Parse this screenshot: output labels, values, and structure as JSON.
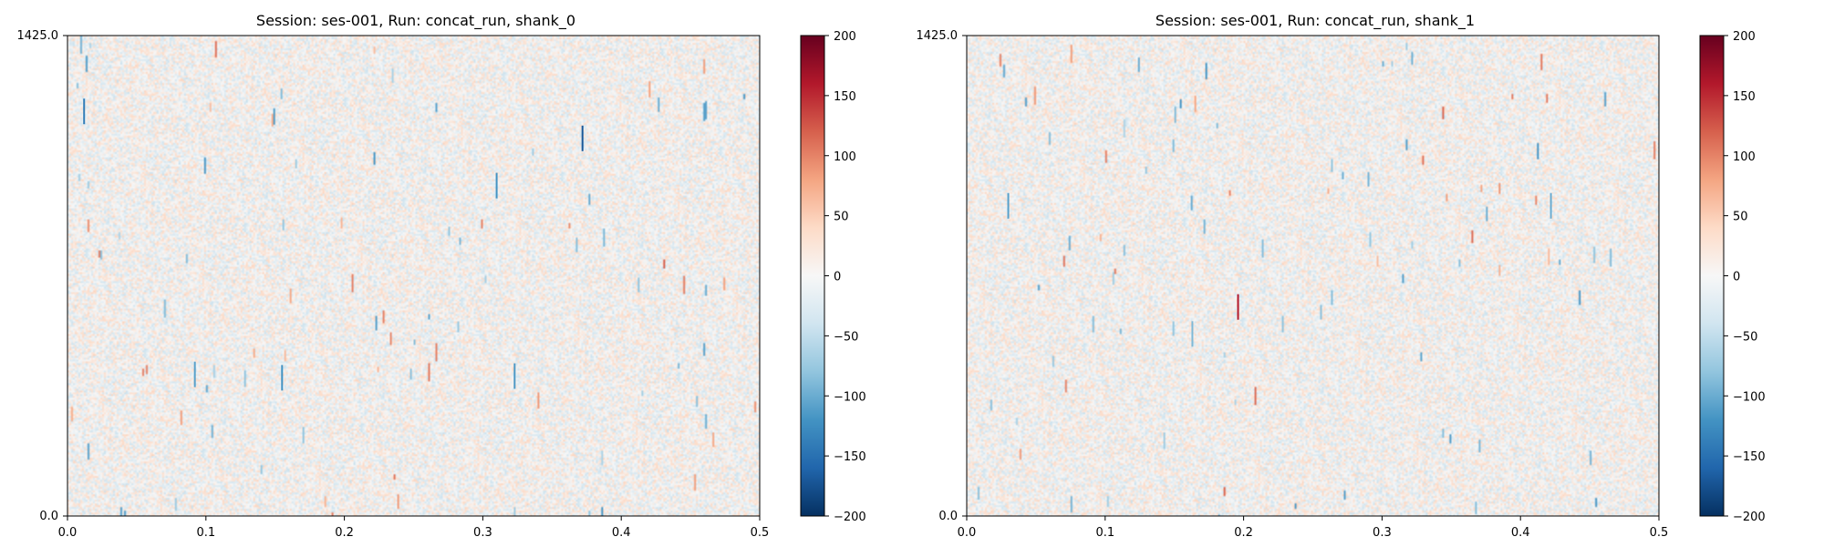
{
  "chart_data": [
    {
      "type": "heatmap",
      "title": "Session: ses-001, Run: concat_run, shank_0",
      "xlabel": "",
      "ylabel": "",
      "xlim": [
        0.0,
        0.5
      ],
      "ylim": [
        0.0,
        1425.0
      ],
      "x_ticks": [
        0.0,
        0.1,
        0.2,
        0.3,
        0.4,
        0.5
      ],
      "x_tick_labels": [
        "0.0",
        "0.1",
        "0.2",
        "0.3",
        "0.4",
        "0.5"
      ],
      "y_tick_labels": [
        "0.0",
        "1425.0"
      ],
      "colorbar": {
        "colormap": "RdBu_r",
        "range": [
          -200,
          200
        ],
        "ticks": [
          200,
          150,
          100,
          50,
          0,
          -50,
          -100,
          -150,
          -200
        ],
        "tick_labels": [
          "200",
          "150",
          "100",
          "50",
          "0",
          "−50",
          "−100",
          "−150",
          "−200"
        ]
      },
      "highlights": [
        {
          "t": 0.012,
          "depth": 1200,
          "value": -140
        },
        {
          "t": 0.372,
          "depth": 1120,
          "value": -170
        },
        {
          "t": 0.31,
          "depth": 980,
          "value": -120
        },
        {
          "t": 0.092,
          "depth": 420,
          "value": -110
        },
        {
          "t": 0.155,
          "depth": 410,
          "value": -120
        },
        {
          "t": 0.323,
          "depth": 415,
          "value": -115
        }
      ]
    },
    {
      "type": "heatmap",
      "title": "Session: ses-001, Run: concat_run, shank_1",
      "xlabel": "",
      "ylabel": "",
      "xlim": [
        0.0,
        0.5
      ],
      "ylim": [
        0.0,
        1425.0
      ],
      "x_ticks": [
        0.0,
        0.1,
        0.2,
        0.3,
        0.4,
        0.5
      ],
      "x_tick_labels": [
        "0.0",
        "0.1",
        "0.2",
        "0.3",
        "0.4",
        "0.5"
      ],
      "y_tick_labels": [
        "0.0",
        "1425.0"
      ],
      "colorbar": {
        "colormap": "RdBu_r",
        "range": [
          -200,
          200
        ],
        "ticks": [
          200,
          150,
          100,
          50,
          0,
          -50,
          -100,
          -150,
          -200
        ],
        "tick_labels": [
          "200",
          "150",
          "100",
          "50",
          "0",
          "−50",
          "−100",
          "−150",
          "−200"
        ]
      },
      "highlights": [
        {
          "t": 0.196,
          "depth": 620,
          "value": 160
        },
        {
          "t": 0.03,
          "depth": 920,
          "value": -110
        },
        {
          "t": 0.422,
          "depth": 920,
          "value": -100
        },
        {
          "t": 0.163,
          "depth": 540,
          "value": -90
        }
      ]
    }
  ]
}
